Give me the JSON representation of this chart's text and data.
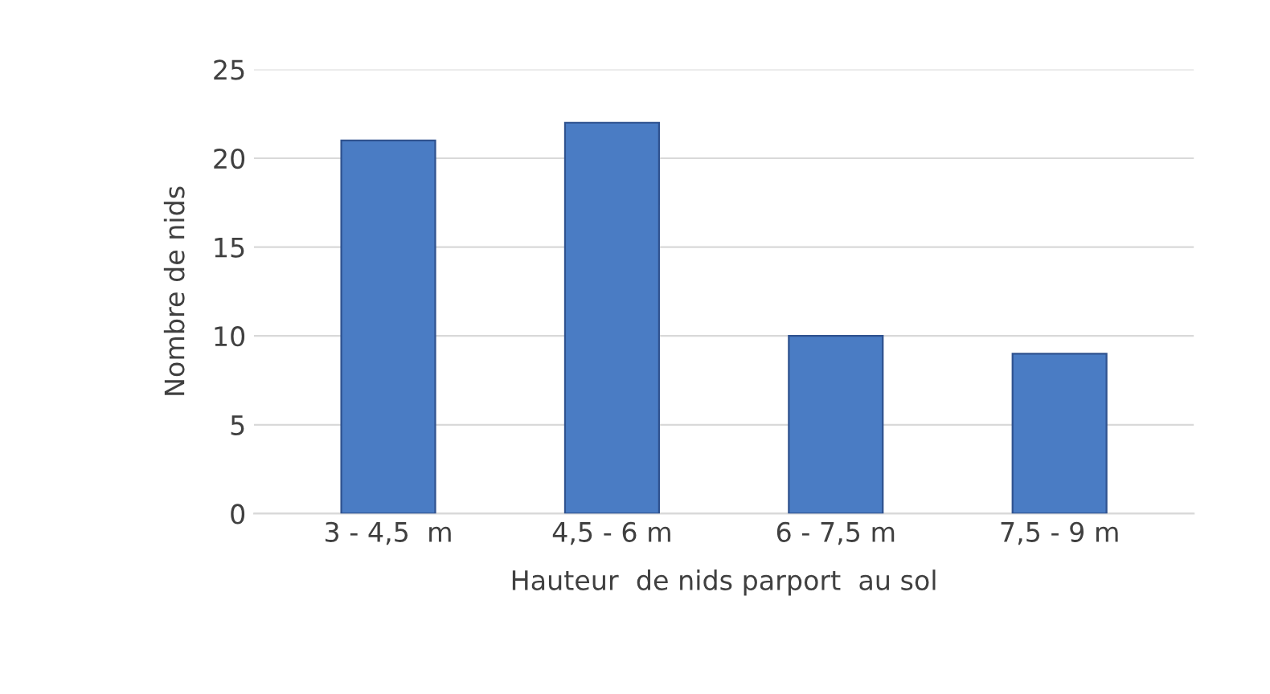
{
  "chart_data": {
    "type": "bar",
    "xlabel": "Hauteur  de nids parport  au sol",
    "ylabel": "Nombre de nids",
    "categories": [
      "3 - 4,5  m",
      "4,5 - 6 m",
      "6 - 7,5 m",
      "7,5 - 9 m"
    ],
    "values": [
      21,
      22,
      10,
      9
    ],
    "color": "#4a7cc4",
    "ylim": [
      0,
      25
    ],
    "yticks": [
      0,
      5,
      10,
      15,
      20,
      25
    ],
    "grid": "y"
  }
}
